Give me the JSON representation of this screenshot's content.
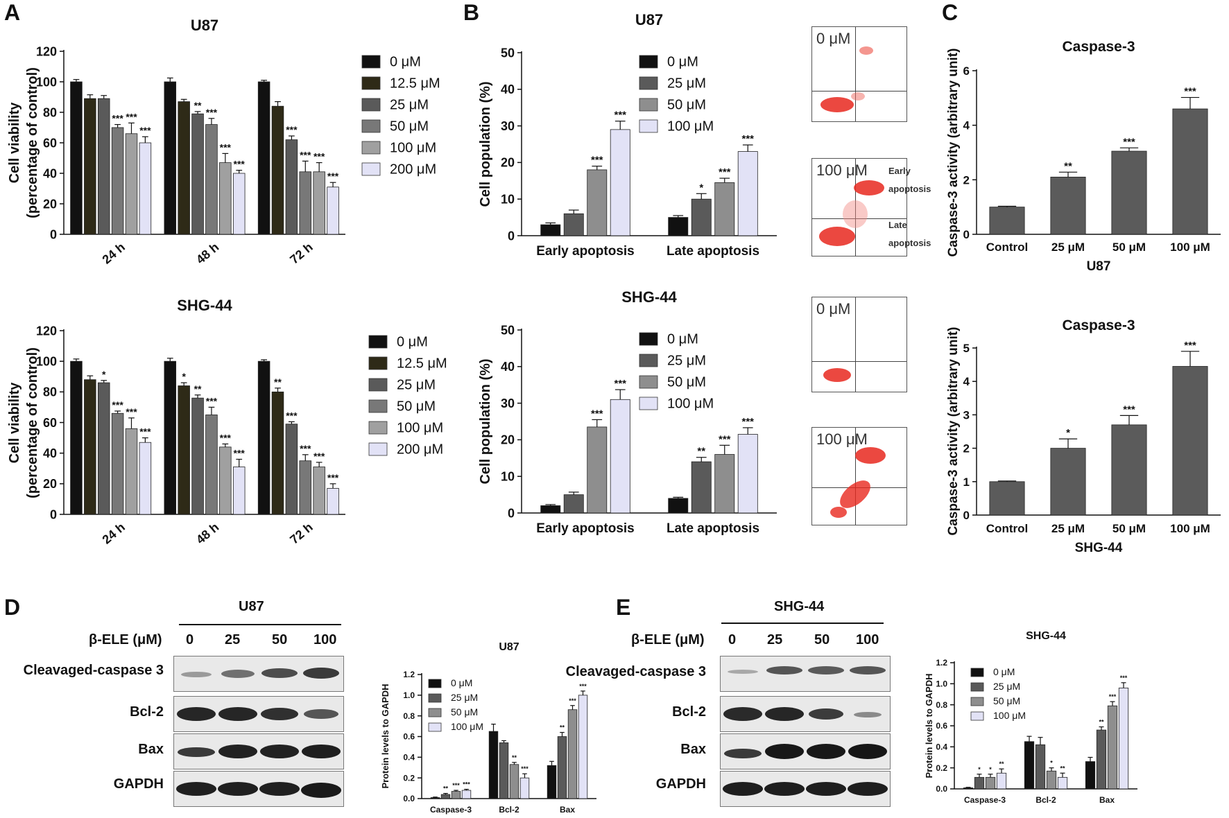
{
  "panel_letters": [
    "A",
    "B",
    "C",
    "D",
    "E"
  ],
  "chart_data": [
    {
      "id": "A_U87",
      "type": "bar",
      "title": "U87",
      "ylabel": "Cell viability\n(percentage of control)",
      "ylim": [
        0,
        120
      ],
      "yticks": [
        0,
        20,
        40,
        60,
        80,
        100,
        120
      ],
      "categories": [
        "24 h",
        "48 h",
        "72 h"
      ],
      "series": [
        {
          "name": "0 μM",
          "color": "#111111",
          "values": [
            100,
            100,
            100
          ],
          "err": [
            1.5,
            2.5,
            1
          ],
          "sig": [
            "",
            "",
            ""
          ]
        },
        {
          "name": "12.5 μM",
          "color": "#2e2a17",
          "values": [
            89,
            87,
            84
          ],
          "err": [
            2.5,
            1.5,
            3
          ],
          "sig": [
            "",
            "",
            ""
          ]
        },
        {
          "name": "25 μM",
          "color": "#5a5a5a",
          "values": [
            89,
            79,
            62
          ],
          "err": [
            2,
            1.5,
            2.5
          ],
          "sig": [
            "",
            "**",
            "***"
          ]
        },
        {
          "name": "50 μM",
          "color": "#787878",
          "values": [
            70,
            72,
            41
          ],
          "err": [
            2,
            4,
            7
          ],
          "sig": [
            "***",
            "***",
            "***"
          ]
        },
        {
          "name": "100 μM",
          "color": "#a0a0a0",
          "values": [
            66,
            47,
            41
          ],
          "err": [
            7,
            6,
            6
          ],
          "sig": [
            "***",
            "***",
            "***"
          ]
        },
        {
          "name": "200 μM",
          "color": "#e2e2f6",
          "values": [
            60,
            40,
            31
          ],
          "err": [
            4,
            2,
            3
          ],
          "sig": [
            "***",
            "***",
            "***"
          ]
        }
      ]
    },
    {
      "id": "A_SHG44",
      "type": "bar",
      "title": "SHG-44",
      "ylabel": "Cell viability\n(percentage of control)",
      "ylim": [
        0,
        120
      ],
      "yticks": [
        0,
        20,
        40,
        60,
        80,
        100,
        120
      ],
      "categories": [
        "24 h",
        "48 h",
        "72 h"
      ],
      "series": [
        {
          "name": "0 μM",
          "color": "#111111",
          "values": [
            100,
            100,
            100
          ],
          "err": [
            1.5,
            2,
            1
          ],
          "sig": [
            "",
            "",
            ""
          ]
        },
        {
          "name": "12.5 μM",
          "color": "#2e2a17",
          "values": [
            88,
            84,
            80
          ],
          "err": [
            2.5,
            2,
            2.5
          ],
          "sig": [
            "",
            "*",
            "**"
          ]
        },
        {
          "name": "25 μM",
          "color": "#5a5a5a",
          "values": [
            86,
            76,
            59
          ],
          "err": [
            1.5,
            2,
            1.5
          ],
          "sig": [
            "*",
            "**",
            "***"
          ]
        },
        {
          "name": "50 μM",
          "color": "#787878",
          "values": [
            66,
            65,
            35
          ],
          "err": [
            1.5,
            5,
            4
          ],
          "sig": [
            "***",
            "***",
            "***"
          ]
        },
        {
          "name": "100 μM",
          "color": "#a0a0a0",
          "values": [
            56,
            44,
            31
          ],
          "err": [
            7,
            2,
            3
          ],
          "sig": [
            "***",
            "***",
            "***"
          ]
        },
        {
          "name": "200 μM",
          "color": "#e2e2f6",
          "values": [
            47,
            31,
            17
          ],
          "err": [
            3,
            5,
            3
          ],
          "sig": [
            "***",
            "***",
            "***"
          ]
        }
      ]
    },
    {
      "id": "B_U87",
      "type": "bar",
      "title": "U87",
      "ylabel": "Cell population (%)",
      "ylim": [
        0,
        50
      ],
      "yticks": [
        0,
        10,
        20,
        30,
        40,
        50
      ],
      "categories": [
        "Early apoptosis",
        "Late apoptosis"
      ],
      "series": [
        {
          "name": "0 μM",
          "color": "#111111",
          "values": [
            3,
            5
          ],
          "err": [
            0.5,
            0.5
          ],
          "sig": [
            "",
            ""
          ]
        },
        {
          "name": "25 μM",
          "color": "#5a5a5a",
          "values": [
            6,
            10
          ],
          "err": [
            1,
            1.5
          ],
          "sig": [
            "",
            "*"
          ]
        },
        {
          "name": "50 μM",
          "color": "#8e8e8e",
          "values": [
            18,
            14.5
          ],
          "err": [
            1,
            1.2
          ],
          "sig": [
            "***",
            "***"
          ]
        },
        {
          "name": "100 μM",
          "color": "#e2e2f6",
          "values": [
            29,
            23
          ],
          "err": [
            2.3,
            1.8
          ],
          "sig": [
            "***",
            "***"
          ]
        }
      ]
    },
    {
      "id": "B_SHG44",
      "type": "bar",
      "title": "SHG-44",
      "ylabel": "Cell population (%)",
      "ylim": [
        0,
        50
      ],
      "yticks": [
        0,
        10,
        20,
        30,
        40,
        50
      ],
      "categories": [
        "Early apoptosis",
        "Late apoptosis"
      ],
      "series": [
        {
          "name": "0 μM",
          "color": "#111111",
          "values": [
            2,
            4
          ],
          "err": [
            0.3,
            0.3
          ],
          "sig": [
            "",
            ""
          ]
        },
        {
          "name": "25 μM",
          "color": "#5a5a5a",
          "values": [
            5,
            14
          ],
          "err": [
            0.7,
            1.2
          ],
          "sig": [
            "",
            "**"
          ]
        },
        {
          "name": "50 μM",
          "color": "#8e8e8e",
          "values": [
            23.5,
            16
          ],
          "err": [
            2,
            2.5
          ],
          "sig": [
            "***",
            "***"
          ]
        },
        {
          "name": "100 μM",
          "color": "#e2e2f6",
          "values": [
            31,
            21.5
          ],
          "err": [
            2.7,
            1.8
          ],
          "sig": [
            "***",
            "***"
          ]
        }
      ]
    },
    {
      "id": "C_U87",
      "type": "bar",
      "title": "Caspase-3",
      "ylabel": "Caspase-3 activity (arbitrary unit)",
      "xlabel": "U87",
      "ylim": [
        0,
        6
      ],
      "yticks": [
        0,
        2,
        4,
        6
      ],
      "categories": [
        "Control",
        "25 μM",
        "50 μM",
        "100 μM"
      ],
      "series": [
        {
          "color": "#5b5b5b",
          "values": [
            1,
            2.1,
            3.05,
            4.6
          ],
          "err": [
            0.03,
            0.18,
            0.12,
            0.42
          ],
          "sig": [
            "",
            "**",
            "***",
            "***"
          ]
        }
      ]
    },
    {
      "id": "C_SHG44",
      "type": "bar",
      "title": "Caspase-3",
      "ylabel": "Caspase-3 activity (arbitrary unit)",
      "xlabel": "SHG-44",
      "ylim": [
        0,
        5
      ],
      "yticks": [
        0,
        1,
        2,
        3,
        4,
        5
      ],
      "categories": [
        "Control",
        "25 μM",
        "50 μM",
        "100 μM"
      ],
      "series": [
        {
          "color": "#5b5b5b",
          "values": [
            1,
            2,
            2.7,
            4.45
          ],
          "err": [
            0.02,
            0.28,
            0.28,
            0.45
          ],
          "sig": [
            "",
            "*",
            "***",
            "***"
          ]
        }
      ]
    },
    {
      "id": "D_U87",
      "type": "bar",
      "title": "U87",
      "ylabel": "Protein levels to GAPDH",
      "ylim": [
        0,
        1.2
      ],
      "yticks": [
        0.0,
        0.2,
        0.4,
        0.6,
        0.8,
        1.0,
        1.2
      ],
      "categories": [
        "Caspase-3",
        "Bcl-2",
        "Bax"
      ],
      "series": [
        {
          "name": "0 μM",
          "color": "#111111",
          "values": [
            0.01,
            0.65,
            0.32
          ],
          "err": [
            0.005,
            0.07,
            0.04
          ],
          "sig": [
            "",
            "",
            ""
          ]
        },
        {
          "name": "25 μM",
          "color": "#5a5a5a",
          "values": [
            0.04,
            0.54,
            0.6
          ],
          "err": [
            0.01,
            0.02,
            0.04
          ],
          "sig": [
            "**",
            "",
            "**"
          ]
        },
        {
          "name": "50 μM",
          "color": "#8e8e8e",
          "values": [
            0.07,
            0.33,
            0.86
          ],
          "err": [
            0.01,
            0.02,
            0.04
          ],
          "sig": [
            "***",
            "**",
            "***"
          ]
        },
        {
          "name": "100 μM",
          "color": "#e2e2f6",
          "values": [
            0.08,
            0.2,
            1.0
          ],
          "err": [
            0.01,
            0.04,
            0.04
          ],
          "sig": [
            "***",
            "***",
            "***"
          ]
        }
      ]
    },
    {
      "id": "E_SHG44",
      "type": "bar",
      "title": "SHG-44",
      "ylabel": "Protein levels to GAPDH",
      "ylim": [
        0,
        1.2
      ],
      "yticks": [
        0.0,
        0.2,
        0.4,
        0.6,
        0.8,
        1.0,
        1.2
      ],
      "categories": [
        "Caspase-3",
        "Bcl-2",
        "Bax"
      ],
      "series": [
        {
          "name": "0 μM",
          "color": "#111111",
          "values": [
            0.01,
            0.45,
            0.26
          ],
          "err": [
            0.005,
            0.05,
            0.04
          ],
          "sig": [
            "",
            "",
            ""
          ]
        },
        {
          "name": "25 μM",
          "color": "#5a5a5a",
          "values": [
            0.11,
            0.42,
            0.56
          ],
          "err": [
            0.03,
            0.07,
            0.03
          ],
          "sig": [
            "*",
            "",
            "**"
          ]
        },
        {
          "name": "50 μM",
          "color": "#8e8e8e",
          "values": [
            0.11,
            0.17,
            0.79
          ],
          "err": [
            0.03,
            0.03,
            0.04
          ],
          "sig": [
            "*",
            "*",
            "***"
          ]
        },
        {
          "name": "100 μM",
          "color": "#e2e2f6",
          "values": [
            0.15,
            0.11,
            0.96
          ],
          "err": [
            0.04,
            0.04,
            0.05
          ],
          "sig": [
            "**",
            "**",
            "***"
          ]
        }
      ]
    }
  ],
  "flow_plots": [
    {
      "dose": "0 μM"
    },
    {
      "dose": "100 μM",
      "notes": [
        "Early",
        "apoptosis",
        "Late",
        "apoptosis"
      ]
    },
    {
      "dose": "0 μM"
    },
    {
      "dose": "100 μM"
    }
  ],
  "blots": [
    {
      "header": "U87",
      "dose_label": "β-ELE (μM)",
      "doses": [
        "0",
        "25",
        "50",
        "100"
      ],
      "rows": [
        "Cleavaged-caspase 3",
        "Bcl-2",
        "Bax",
        "GAPDH"
      ]
    },
    {
      "header": "SHG-44",
      "dose_label": "β-ELE (μM)",
      "doses": [
        "0",
        "25",
        "50",
        "100"
      ],
      "rows": [
        "Cleavaged-caspase 3",
        "Bcl-2",
        "Bax",
        "GAPDH"
      ]
    }
  ]
}
